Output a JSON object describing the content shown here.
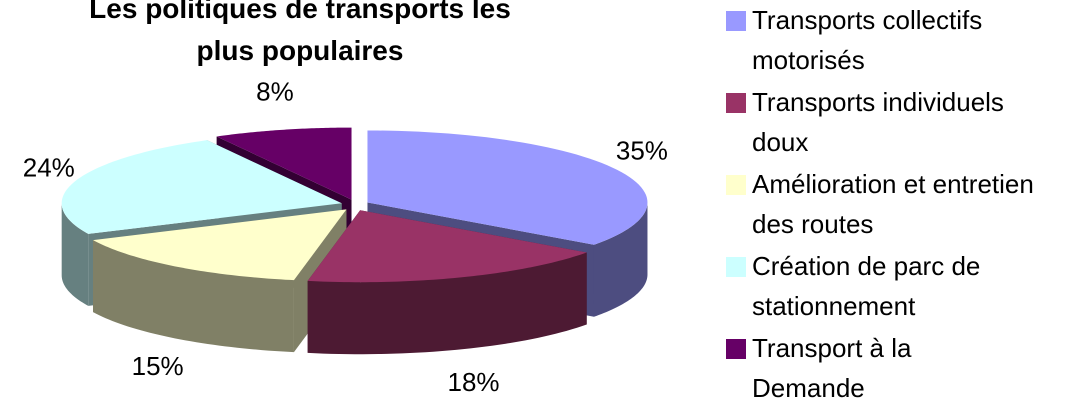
{
  "chart_data": {
    "type": "pie3d",
    "title": "Les politiques de transports les plus populaires",
    "categories": [
      "Transports collectifs motorisés",
      "Transports individuels doux",
      "Amélioration et entretien des routes",
      "Création de parc de stationnement",
      "Transport à la Demande"
    ],
    "values": [
      35,
      18,
      15,
      24,
      8
    ],
    "value_labels": [
      "35%",
      "18%",
      "15%",
      "24%",
      "8%"
    ],
    "colors": [
      "#9999ff",
      "#993366",
      "#ffffcc",
      "#ccffff",
      "#660066"
    ],
    "legend": "right"
  }
}
